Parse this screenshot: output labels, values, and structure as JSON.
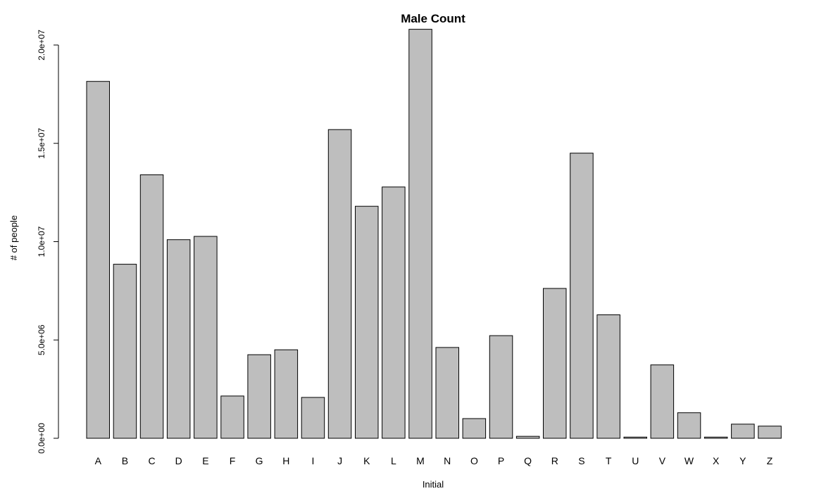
{
  "chart_data": {
    "type": "bar",
    "title": "Male Count",
    "xlabel": "Initial",
    "ylabel": "# of people",
    "categories": [
      "A",
      "B",
      "C",
      "D",
      "E",
      "F",
      "G",
      "H",
      "I",
      "J",
      "K",
      "L",
      "M",
      "N",
      "O",
      "P",
      "Q",
      "R",
      "S",
      "T",
      "U",
      "V",
      "W",
      "X",
      "Y",
      "Z"
    ],
    "values": [
      18150000,
      8850000,
      13400000,
      10100000,
      10270000,
      2150000,
      4250000,
      4500000,
      2080000,
      15700000,
      11800000,
      12780000,
      20800000,
      4620000,
      1000000,
      5220000,
      100000,
      7620000,
      14500000,
      6280000,
      60000,
      3730000,
      1300000,
      60000,
      720000,
      620000
    ],
    "ylim": [
      0,
      20000000
    ],
    "yticks": [
      0,
      5000000,
      10000000,
      15000000,
      20000000
    ],
    "ytick_labels": [
      "0.0e+00",
      "5.0e+06",
      "1.0e+07",
      "1.5e+07",
      "2.0e+07"
    ],
    "grid": false,
    "bar_color": "#bebebe",
    "edge_color": "#000000"
  }
}
